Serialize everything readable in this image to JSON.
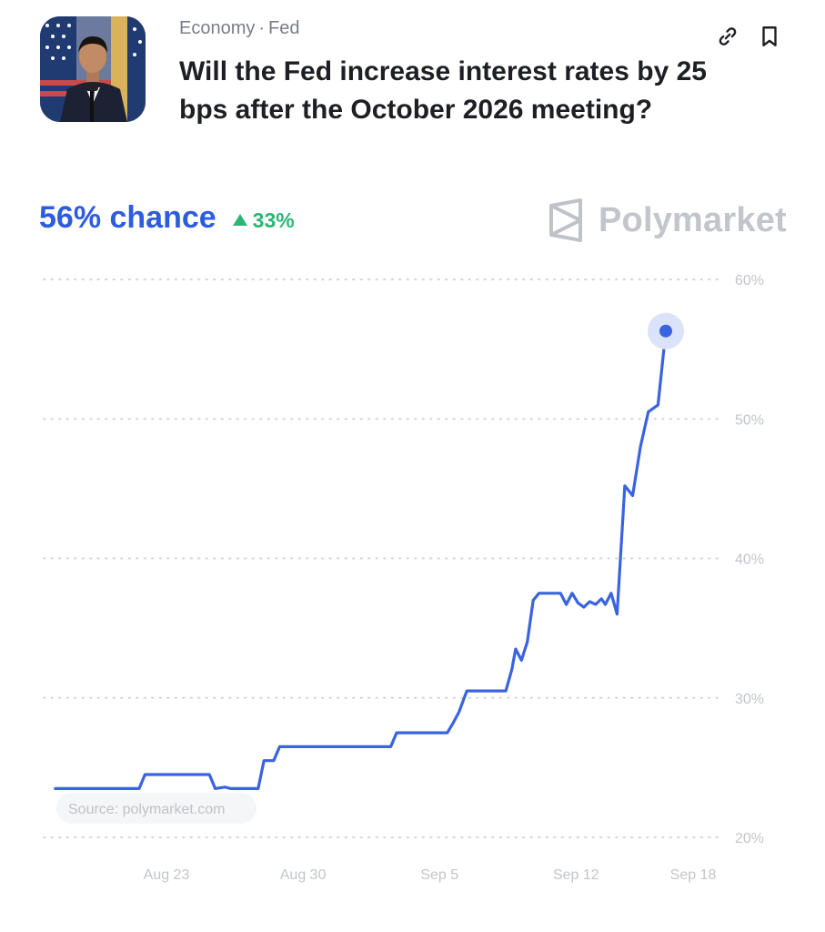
{
  "market": {
    "category": "Economy",
    "subcategory": "Fed",
    "separator": "·",
    "question": "Will the Fed increase interest rates by 25 bps after the October 2026 meeting?",
    "chance_label": "56% chance",
    "change_label": "33%",
    "change_direction": "up"
  },
  "brand": {
    "name": "Polymarket"
  },
  "icons": {
    "link": "link-icon",
    "bookmark": "bookmark-icon",
    "thumbnail": "speaker-photo"
  },
  "colors": {
    "accent": "#2e5cde",
    "line": "#3a63e0",
    "positive": "#2bb673",
    "muted": "#c3c5ca"
  },
  "chart_data": {
    "type": "line",
    "source": "Source: polymarket.com",
    "ylim": [
      20,
      60
    ],
    "yticks": [
      60,
      50,
      40,
      30,
      20
    ],
    "ytick_labels": [
      "60%",
      "50%",
      "40%",
      "30%",
      "20%"
    ],
    "grid": "horizontal dotted",
    "xlim": [
      0,
      30
    ],
    "xticks": [
      3,
      10,
      17,
      24,
      30
    ],
    "xtick_labels": [
      "Aug 23",
      "Aug 30",
      "Sep 5",
      "Sep 12",
      "Sep 18"
    ],
    "series": [
      {
        "points": [
          [
            -2.7,
            23.5
          ],
          [
            1.6,
            23.5
          ],
          [
            1.9,
            24.5
          ],
          [
            5.2,
            24.5
          ],
          [
            5.5,
            23.5
          ],
          [
            6.0,
            23.6
          ],
          [
            6.3,
            23.5
          ],
          [
            7.7,
            23.5
          ],
          [
            8.0,
            25.5
          ],
          [
            8.5,
            25.5
          ],
          [
            8.8,
            26.5
          ],
          [
            14.5,
            26.5
          ],
          [
            14.8,
            27.5
          ],
          [
            17.4,
            27.5
          ],
          [
            17.7,
            28.2
          ],
          [
            18.0,
            29.0
          ],
          [
            18.4,
            30.5
          ],
          [
            20.4,
            30.5
          ],
          [
            20.7,
            32.0
          ],
          [
            20.9,
            33.5
          ],
          [
            21.2,
            32.7
          ],
          [
            21.5,
            34.0
          ],
          [
            21.8,
            37.0
          ],
          [
            22.1,
            37.5
          ],
          [
            23.2,
            37.5
          ],
          [
            23.5,
            36.7
          ],
          [
            23.8,
            37.5
          ],
          [
            24.1,
            36.8
          ],
          [
            24.4,
            36.5
          ],
          [
            24.7,
            36.9
          ],
          [
            25.0,
            36.7
          ],
          [
            25.3,
            37.1
          ],
          [
            25.5,
            36.7
          ],
          [
            25.8,
            37.5
          ],
          [
            26.1,
            36.0
          ],
          [
            26.5,
            45.2
          ],
          [
            26.9,
            44.5
          ],
          [
            27.3,
            48.0
          ],
          [
            27.7,
            50.5
          ],
          [
            28.2,
            51.0
          ],
          [
            28.6,
            56.3
          ]
        ]
      }
    ]
  }
}
